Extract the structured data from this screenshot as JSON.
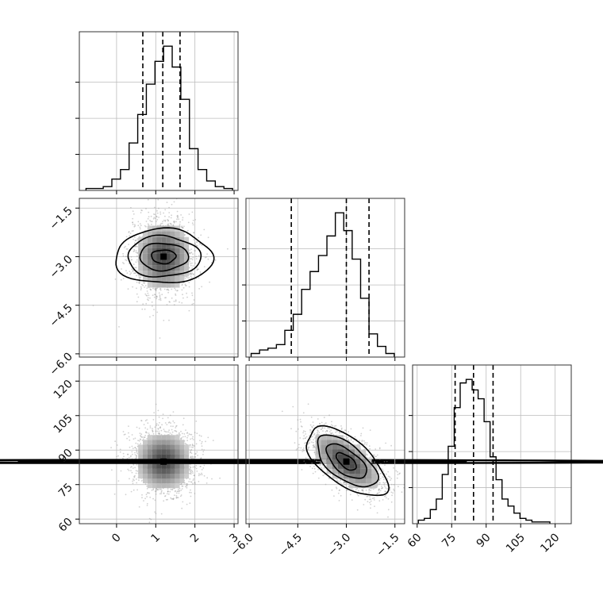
{
  "chart_data": {
    "type": "corner",
    "parameters": [
      {
        "ticks": [
          0,
          1,
          2,
          3
        ],
        "tick_labels": [
          "0",
          "1",
          "2",
          "3"
        ],
        "range": [
          -0.95,
          3.1
        ],
        "quantiles": [
          0.67,
          1.18,
          1.62
        ],
        "mean": 1.2,
        "std": 0.42
      },
      {
        "ticks": [
          -6.0,
          -4.5,
          -3.0,
          -1.5
        ],
        "tick_labels": [
          "−6.0",
          "−4.5",
          "−3.0",
          "−1.5"
        ],
        "range": [
          -6.1,
          -1.2
        ],
        "quantiles": [
          -4.7,
          -3.0,
          -2.3
        ],
        "mean": -3.0,
        "std": 0.62
      },
      {
        "ticks": [
          60,
          75,
          90,
          105,
          120
        ],
        "tick_labels": [
          "60",
          "75",
          "90",
          "105",
          "120"
        ],
        "range": [
          58,
          127
        ],
        "quantiles": [
          76.5,
          84.5,
          93.0
        ],
        "mean": 85,
        "std": 7.5
      }
    ],
    "histograms": [
      {
        "param": 0,
        "bins": [
          -0.78,
          -0.56,
          -0.34,
          -0.12,
          0.1,
          0.32,
          0.54,
          0.76,
          0.98,
          1.2,
          1.42,
          1.64,
          1.86,
          2.08,
          2.3,
          2.52,
          2.74,
          2.96
        ],
        "counts": [
          1,
          1,
          2,
          6,
          11,
          25,
          40,
          56,
          68,
          76,
          65,
          48,
          22,
          11,
          5,
          2,
          1
        ]
      },
      {
        "param": 1,
        "bins": [
          -5.94,
          -5.68,
          -5.42,
          -5.16,
          -4.9,
          -4.64,
          -4.38,
          -4.12,
          -3.86,
          -3.6,
          -3.34,
          -3.08,
          -2.82,
          -2.56,
          -2.3,
          -2.04,
          -1.78,
          -1.52
        ],
        "counts": [
          2,
          4,
          5,
          7,
          15,
          24,
          38,
          48,
          57,
          68,
          81,
          71,
          55,
          33,
          13,
          6,
          2
        ]
      },
      {
        "param": 2,
        "bins": [
          60.5,
          63.1,
          65.7,
          68.3,
          70.9,
          73.5,
          76.1,
          78.7,
          81.3,
          83.9,
          86.5,
          89.1,
          91.7,
          94.3,
          96.9,
          99.5,
          102.1,
          104.7,
          107.3,
          109.9,
          112.5,
          115.1,
          117.7
        ],
        "counts": [
          2,
          3,
          8,
          14,
          28,
          44,
          66,
          80,
          82,
          76,
          71,
          58,
          38,
          25,
          14,
          10,
          6,
          3,
          2,
          1,
          1,
          1
        ]
      }
    ],
    "pairs": [
      {
        "x_param": 0,
        "y_param": 1,
        "correlation": 0.0
      },
      {
        "x_param": 0,
        "y_param": 2,
        "correlation": 0.0
      },
      {
        "x_param": 1,
        "y_param": 2,
        "correlation": -0.62
      }
    ],
    "contour_levels": [
      0.5,
      1.0,
      1.5,
      2.0
    ],
    "grid": true
  }
}
